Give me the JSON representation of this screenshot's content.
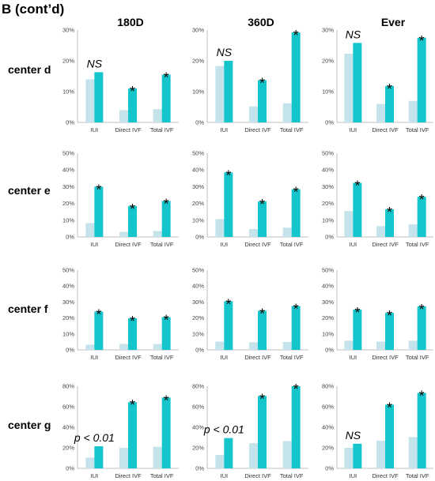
{
  "panel_label": "B (cont’d)",
  "columns": [
    "180D",
    "360D",
    "Ever"
  ],
  "rows": [
    "center d",
    "center e",
    "center f",
    "center g"
  ],
  "colors": {
    "light": "#c5e3ea",
    "dark": "#14c6cb",
    "axis": "#bfbfbf"
  },
  "chart_data": [
    {
      "type": "bar",
      "center": "center d",
      "period": "180D",
      "categories": [
        "IUI",
        "Direct IVF",
        "Total IVF"
      ],
      "ylim": [
        0,
        30
      ],
      "yticks": [
        "0%",
        "10%",
        "20%",
        "30%"
      ],
      "series": [
        {
          "values": [
            14,
            4,
            4.3
          ]
        },
        {
          "values": [
            16.3,
            11,
            15.5
          ]
        }
      ],
      "annotations": [
        "NS",
        "*",
        "*"
      ]
    },
    {
      "type": "bar",
      "center": "center d",
      "period": "360D",
      "categories": [
        "IUI",
        "Direct IVF",
        "Total IVF"
      ],
      "ylim": [
        0,
        30
      ],
      "yticks": [
        "0%",
        "10%",
        "20%",
        "30%"
      ],
      "series": [
        {
          "values": [
            18.3,
            5.2,
            6.2
          ]
        },
        {
          "values": [
            20,
            13.7,
            29.2
          ]
        }
      ],
      "annotations": [
        "NS",
        "*",
        "*"
      ]
    },
    {
      "type": "bar",
      "center": "center d",
      "period": "Ever",
      "categories": [
        "IUI",
        "Direct IVF",
        "Total IVF"
      ],
      "ylim": [
        0,
        30
      ],
      "yticks": [
        "0%",
        "10%",
        "20%",
        "30%"
      ],
      "series": [
        {
          "values": [
            22.3,
            6,
            7
          ]
        },
        {
          "values": [
            25.8,
            11.8,
            27.5
          ]
        }
      ],
      "annotations": [
        "NS",
        "*",
        "*"
      ]
    },
    {
      "type": "bar",
      "center": "center e",
      "period": "180D",
      "categories": [
        "IUI",
        "Direct IVF",
        "Total IVF"
      ],
      "ylim": [
        0,
        50
      ],
      "yticks": [
        "0%",
        "10%",
        "20%",
        "30%",
        "40%",
        "50%"
      ],
      "series": [
        {
          "values": [
            8.3,
            3,
            3.5
          ]
        },
        {
          "values": [
            30,
            18.5,
            21.5
          ]
        }
      ],
      "annotations": [
        "*",
        "*",
        "*"
      ]
    },
    {
      "type": "bar",
      "center": "center e",
      "period": "360D",
      "categories": [
        "IUI",
        "Direct IVF",
        "Total IVF"
      ],
      "ylim": [
        0,
        50
      ],
      "yticks": [
        "0%",
        "10%",
        "20%",
        "30%",
        "40%",
        "50%"
      ],
      "series": [
        {
          "values": [
            10.7,
            4.7,
            5.5
          ]
        },
        {
          "values": [
            38.5,
            21.2,
            28.5
          ]
        }
      ],
      "annotations": [
        "*",
        "*",
        "*"
      ]
    },
    {
      "type": "bar",
      "center": "center e",
      "period": "Ever",
      "categories": [
        "IUI",
        "Direct IVF",
        "Total IVF"
      ],
      "ylim": [
        0,
        50
      ],
      "yticks": [
        "0%",
        "10%",
        "20%",
        "30%",
        "40%",
        "50%"
      ],
      "series": [
        {
          "values": [
            15.5,
            6.5,
            7.5
          ]
        },
        {
          "values": [
            32.3,
            16.5,
            24
          ]
        }
      ],
      "annotations": [
        "*",
        "*",
        "*"
      ]
    },
    {
      "type": "bar",
      "center": "center f",
      "period": "180D",
      "categories": [
        "IUI",
        "Direct IVF",
        "Total IVF"
      ],
      "ylim": [
        0,
        50
      ],
      "yticks": [
        "0%",
        "10%",
        "20%",
        "30%",
        "40%",
        "50%"
      ],
      "series": [
        {
          "values": [
            3.3,
            3.7,
            3.7
          ]
        },
        {
          "values": [
            24,
            19.8,
            20.5
          ]
        }
      ],
      "annotations": [
        "*",
        "*",
        "*"
      ]
    },
    {
      "type": "bar",
      "center": "center f",
      "period": "360D",
      "categories": [
        "IUI",
        "Direct IVF",
        "Total IVF"
      ],
      "ylim": [
        0,
        50
      ],
      "yticks": [
        "0%",
        "10%",
        "20%",
        "30%",
        "40%",
        "50%"
      ],
      "series": [
        {
          "values": [
            5.2,
            4.8,
            5
          ]
        },
        {
          "values": [
            30.5,
            24.5,
            27.5
          ]
        }
      ],
      "annotations": [
        "*",
        "*",
        "*"
      ]
    },
    {
      "type": "bar",
      "center": "center f",
      "period": "Ever",
      "categories": [
        "IUI",
        "Direct IVF",
        "Total IVF"
      ],
      "ylim": [
        0,
        50
      ],
      "yticks": [
        "0%",
        "10%",
        "20%",
        "30%",
        "40%",
        "50%"
      ],
      "series": [
        {
          "values": [
            5.8,
            5.2,
            5.8
          ]
        },
        {
          "values": [
            25.3,
            23.2,
            27.3
          ]
        }
      ],
      "annotations": [
        "*",
        "*",
        "*"
      ]
    },
    {
      "type": "bar",
      "center": "center g",
      "period": "180D",
      "categories": [
        "IUI",
        "Direct IVF",
        "Total IVF"
      ],
      "ylim": [
        0,
        80
      ],
      "yticks": [
        "0%",
        "20%",
        "40%",
        "60%",
        "80%"
      ],
      "series": [
        {
          "values": [
            10.5,
            20,
            21
          ]
        },
        {
          "values": [
            21.5,
            64.5,
            69
          ]
        }
      ],
      "annotations": [
        "p < 0.01",
        "*",
        "*"
      ]
    },
    {
      "type": "bar",
      "center": "center g",
      "period": "360D",
      "categories": [
        "IUI",
        "Direct IVF",
        "Total IVF"
      ],
      "ylim": [
        0,
        80
      ],
      "yticks": [
        "0%",
        "20%",
        "40%",
        "60%",
        "80%"
      ],
      "series": [
        {
          "values": [
            13,
            24.5,
            26.5
          ]
        },
        {
          "values": [
            29.5,
            70.5,
            80
          ]
        }
      ],
      "annotations": [
        "p < 0.01",
        "*",
        "*"
      ]
    },
    {
      "type": "bar",
      "center": "center g",
      "period": "Ever",
      "categories": [
        "IUI",
        "Direct IVF",
        "Total IVF"
      ],
      "ylim": [
        0,
        80
      ],
      "yticks": [
        "0%",
        "20%",
        "40%",
        "60%",
        "80%"
      ],
      "series": [
        {
          "values": [
            20,
            27,
            30.5
          ]
        },
        {
          "values": [
            24,
            62,
            73.5
          ]
        }
      ],
      "annotations": [
        "NS",
        "*",
        "*"
      ]
    }
  ]
}
